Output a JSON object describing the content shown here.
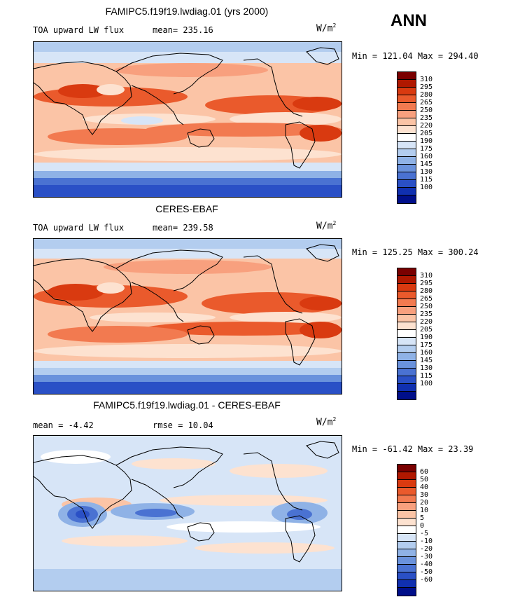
{
  "season": "ANN",
  "panels": [
    {
      "title": "FAMIPC5.f19f19.lwdiag.01 (yrs 2000)",
      "left_label": "TOA upward LW flux",
      "mid_label": "mean= 235.16",
      "units": "W/m",
      "units_exp": "2",
      "minmax": "Min = 121.04 Max = 294.40",
      "palette": [
        "#7a0000",
        "#b01800",
        "#d93a10",
        "#ea5a2c",
        "#f27a50",
        "#f8a07e",
        "#fbc4a6",
        "#fde2d0",
        "#ffffff",
        "#d7e5f7",
        "#b3cdef",
        "#8fb2e6",
        "#6a92dc",
        "#4a72d2",
        "#2a50c6",
        "#1030b0",
        "#000f8a"
      ],
      "levels": [
        "310",
        "295",
        "280",
        "265",
        "250",
        "235",
        "220",
        "205",
        "190",
        "175",
        "160",
        "145",
        "130",
        "115",
        "100"
      ]
    },
    {
      "title": "CERES-EBAF",
      "left_label": "TOA upward LW flux",
      "mid_label": "mean= 239.58",
      "units": "W/m",
      "units_exp": "2",
      "minmax": "Min = 125.25 Max = 300.24",
      "palette": [
        "#7a0000",
        "#b01800",
        "#d93a10",
        "#ea5a2c",
        "#f27a50",
        "#f8a07e",
        "#fbc4a6",
        "#fde2d0",
        "#ffffff",
        "#d7e5f7",
        "#b3cdef",
        "#8fb2e6",
        "#6a92dc",
        "#4a72d2",
        "#2a50c6",
        "#1030b0",
        "#000f8a"
      ],
      "levels": [
        "310",
        "295",
        "280",
        "265",
        "250",
        "235",
        "220",
        "205",
        "190",
        "175",
        "160",
        "145",
        "130",
        "115",
        "100"
      ]
    },
    {
      "title": "FAMIPC5.f19f19.lwdiag.01 - CERES-EBAF",
      "left_label": "mean =  -4.42",
      "mid_label": "rmse =  10.04",
      "units": "W/m",
      "units_exp": "2",
      "minmax": "Min = -61.42 Max =  23.39",
      "palette": [
        "#7a0000",
        "#b01800",
        "#d93a10",
        "#ea5a2c",
        "#f27a50",
        "#f8a07e",
        "#fbc4a6",
        "#fde2d0",
        "#ffffff",
        "#d7e5f7",
        "#b3cdef",
        "#8fb2e6",
        "#6a92dc",
        "#4a72d2",
        "#2a50c6",
        "#1030b0",
        "#000f8a"
      ],
      "levels": [
        "60",
        "50",
        "40",
        "30",
        "20",
        "10",
        "5",
        "0",
        "-5",
        "-10",
        "-20",
        "-30",
        "-40",
        "-50",
        "-60"
      ]
    }
  ]
}
